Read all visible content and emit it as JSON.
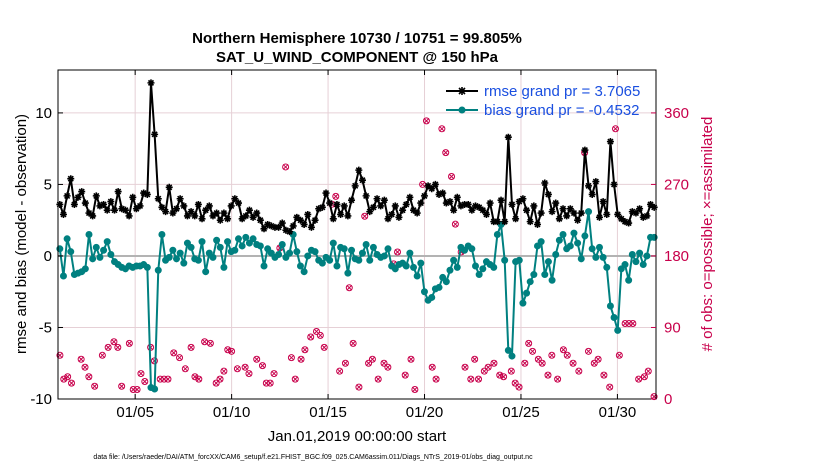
{
  "chart_data": {
    "type": "line",
    "title": "Northern Hemisphere 10730 / 10751 = 99.805%",
    "subtitle": "SAT_U_WIND_COMPONENT @ 150 hPa",
    "xlabel": "Jan.01,2019 00:00:00 start",
    "ylabel": "rmse and bias (model - observation)",
    "ylabel_right": "# of obs: o=possible; ×=assimilated",
    "footnote": "data file: /Users/raeder/DAI/ATM_forcXX/CAM6_setup/f.e21.FHIST_BGC.f09_025.CAM6assim.011/Diags_NTrS_2019-01/obs_diag_output.nc",
    "x_ticks": [
      "01/05",
      "01/10",
      "01/15",
      "01/20",
      "01/25",
      "01/30"
    ],
    "y_ticks": [
      "-10",
      "-5",
      "0",
      "5",
      "10"
    ],
    "y2_ticks": [
      "0",
      "90",
      "180",
      "270",
      "360"
    ],
    "xlim": [
      1.0,
      32.0
    ],
    "ylim": [
      -10,
      13
    ],
    "y2lim": [
      0,
      414
    ],
    "grid": true,
    "legend_position": "top-right",
    "colors": {
      "rmse": "#000000",
      "bias": "#008080",
      "obs": "#c8004b",
      "zero_line": "#b3b3b3"
    },
    "series": [
      {
        "name": "rmse grand pr = 3.7065",
        "values": [
          3.6,
          2.9,
          4.2,
          5.4,
          3.6,
          4.1,
          4.5,
          3.7,
          3.0,
          2.8,
          4.2,
          3.5,
          3.6,
          3.2,
          3.8,
          3.2,
          4.5,
          3.3,
          3.2,
          2.8,
          4.1,
          3.3,
          3.5,
          4.4,
          4.3,
          12.1,
          8.5,
          4.0,
          3.4,
          3.1,
          4.8,
          3.0,
          3.3,
          4.0,
          3.5,
          2.8,
          3.1,
          2.8,
          3.6,
          2.6,
          3.2,
          3.5,
          2.8,
          3.0,
          2.5,
          3.0,
          2.6,
          3.5,
          4.0,
          3.7,
          2.6,
          2.8,
          3.2,
          2.7,
          3.0,
          2.5,
          1.9,
          2.2,
          2.1,
          2.0,
          2.0,
          2.3,
          1.8,
          1.7,
          2.1,
          2.7,
          2.5,
          2.2,
          2.9,
          2.0,
          2.5,
          3.3,
          3.4,
          4.4,
          3.7,
          2.6,
          3.6,
          2.9,
          3.5,
          2.8,
          3.9,
          4.9,
          6.0,
          5.3,
          4.2,
          3.1,
          3.4,
          4.0,
          3.5,
          3.9,
          2.6,
          2.9,
          3.5,
          2.7,
          3.2,
          3.6,
          4.1,
          3.2,
          3.0,
          3.7,
          4.2,
          4.9,
          4.7,
          5.0,
          4.3,
          4.4,
          3.7,
          3.8,
          3.2,
          4.1,
          3.5,
          3.6,
          3.6,
          3.2,
          3.5,
          3.4,
          3.2,
          2.9,
          3.7,
          2.4,
          2.4,
          3.9,
          2.4,
          8.3,
          3.6,
          2.6,
          3.8,
          4.0,
          3.2,
          2.4,
          3.5,
          2.2,
          3.0,
          5.1,
          4.3,
          3.1,
          3.7,
          2.6,
          3.3,
          2.8,
          3.3,
          3.0,
          2.5,
          3.0,
          7.4,
          4.9,
          4.3,
          5.2,
          2.7,
          3.8,
          2.9,
          8.0,
          5.0,
          2.9,
          2.6,
          2.4,
          2.3,
          3.1,
          3.0,
          3.3,
          2.7,
          2.8,
          3.6,
          3.4
        ],
        "marker": "*"
      },
      {
        "name": "bias grand pr = -0.4532",
        "values": [
          0.5,
          -1.4,
          1.2,
          0.3,
          -1.3,
          -1.2,
          -1.1,
          -0.9,
          1.5,
          -0.2,
          0.6,
          -0.1,
          0.4,
          1.0,
          0.1,
          -0.4,
          -0.6,
          -0.8,
          -0.9,
          -0.7,
          -0.8,
          -0.7,
          -0.7,
          -0.6,
          -0.8,
          -9.2,
          -9.3,
          -1.0,
          1.5,
          -0.3,
          -0.1,
          0.4,
          -0.2,
          0.2,
          -0.5,
          0.9,
          0.6,
          -0.2,
          -0.3,
          1.0,
          -1.1,
          0.2,
          -0.1,
          1.1,
          0.6,
          -0.8,
          1.0,
          0.3,
          0.4,
          1.2,
          0.7,
          1.3,
          0.9,
          1.2,
          0.8,
          0.7,
          -0.7,
          0.5,
          0.2,
          -0.1,
          0.1,
          0.8,
          -0.1,
          0.2,
          1.5,
          0.3,
          -0.7,
          -1.1,
          0.0,
          0.4,
          0.3,
          -0.3,
          -0.5,
          -0.1,
          -0.3,
          0.9,
          -0.7,
          0.6,
          0.5,
          -1.2,
          0.4,
          -0.2,
          -0.3,
          0.2,
          0.8,
          -0.3,
          0.6,
          0.1,
          -0.1,
          0.0,
          0.5,
          -0.7,
          -0.9,
          -0.6,
          -0.5,
          -0.7,
          0.2,
          -0.8,
          -1.4,
          -0.5,
          -2.5,
          -3.1,
          -2.9,
          -2.3,
          -2.2,
          -1.5,
          -1.8,
          -1.0,
          -0.3,
          -0.8,
          0.6,
          0.4,
          0.7,
          0.5,
          -0.7,
          -1.3,
          -0.9,
          -0.4,
          -0.6,
          -0.8,
          1.5,
          2.2,
          -0.3,
          -6.6,
          -7.0,
          -0.4,
          -0.3,
          -3.3,
          -2.6,
          -1.8,
          -1.3,
          0.7,
          1.0,
          -1.3,
          -0.4,
          -1.7,
          0.1,
          1.1,
          1.5,
          0.5,
          0.7,
          1.6,
          0.9,
          -0.2,
          1.4,
          3.1,
          0.5,
          -0.1,
          0.6,
          -0.1,
          -0.8,
          -3.5,
          -4.3,
          -5.2,
          -0.9,
          -0.6,
          -1.7,
          0.1,
          -0.4,
          0.2,
          -0.6,
          0.0,
          1.3,
          1.3
        ],
        "marker": "o"
      }
    ],
    "obs_count": [
      {
        "day": 1.1,
        "count": 55
      },
      {
        "day": 1.3,
        "count": 25
      },
      {
        "day": 1.5,
        "count": 28
      },
      {
        "day": 1.7,
        "count": 20
      },
      {
        "day": 2.2,
        "count": 50
      },
      {
        "day": 2.4,
        "count": 40
      },
      {
        "day": 2.6,
        "count": 28
      },
      {
        "day": 2.9,
        "count": 16
      },
      {
        "day": 3.3,
        "count": 55
      },
      {
        "day": 3.6,
        "count": 65
      },
      {
        "day": 3.9,
        "count": 72
      },
      {
        "day": 4.1,
        "count": 65
      },
      {
        "day": 4.3,
        "count": 16
      },
      {
        "day": 4.7,
        "count": 70
      },
      {
        "day": 4.9,
        "count": 12
      },
      {
        "day": 5.1,
        "count": 12
      },
      {
        "day": 5.3,
        "count": 32
      },
      {
        "day": 5.5,
        "count": 22
      },
      {
        "day": 5.8,
        "count": 65
      },
      {
        "day": 6.0,
        "count": 48
      },
      {
        "day": 6.3,
        "count": 25
      },
      {
        "day": 6.5,
        "count": 25
      },
      {
        "day": 6.7,
        "count": 25
      },
      {
        "day": 7.0,
        "count": 58
      },
      {
        "day": 7.3,
        "count": 52
      },
      {
        "day": 7.6,
        "count": 38
      },
      {
        "day": 7.9,
        "count": 65
      },
      {
        "day": 8.1,
        "count": 28
      },
      {
        "day": 8.3,
        "count": 25
      },
      {
        "day": 8.6,
        "count": 72
      },
      {
        "day": 8.9,
        "count": 70
      },
      {
        "day": 9.2,
        "count": 20
      },
      {
        "day": 9.4,
        "count": 25
      },
      {
        "day": 9.6,
        "count": 35
      },
      {
        "day": 9.8,
        "count": 62
      },
      {
        "day": 10.0,
        "count": 60
      },
      {
        "day": 10.3,
        "count": 38
      },
      {
        "day": 10.7,
        "count": 40
      },
      {
        "day": 10.9,
        "count": 32
      },
      {
        "day": 11.3,
        "count": 50
      },
      {
        "day": 11.6,
        "count": 42
      },
      {
        "day": 11.8,
        "count": 20
      },
      {
        "day": 12.0,
        "count": 20
      },
      {
        "day": 12.2,
        "count": 32
      },
      {
        "day": 12.5,
        "count": 190
      },
      {
        "day": 12.8,
        "count": 292
      },
      {
        "day": 13.1,
        "count": 52
      },
      {
        "day": 13.3,
        "count": 25
      },
      {
        "day": 13.6,
        "count": 50
      },
      {
        "day": 13.8,
        "count": 62
      },
      {
        "day": 14.1,
        "count": 78
      },
      {
        "day": 14.4,
        "count": 85
      },
      {
        "day": 14.6,
        "count": 80
      },
      {
        "day": 14.8,
        "count": 65
      },
      {
        "day": 15.2,
        "count": 245
      },
      {
        "day": 15.4,
        "count": 255
      },
      {
        "day": 15.6,
        "count": 35
      },
      {
        "day": 15.9,
        "count": 45
      },
      {
        "day": 16.1,
        "count": 140
      },
      {
        "day": 16.3,
        "count": 70
      },
      {
        "day": 16.6,
        "count": 15
      },
      {
        "day": 16.9,
        "count": 230
      },
      {
        "day": 17.1,
        "count": 45
      },
      {
        "day": 17.3,
        "count": 50
      },
      {
        "day": 17.6,
        "count": 25
      },
      {
        "day": 17.9,
        "count": 45
      },
      {
        "day": 18.1,
        "count": 40
      },
      {
        "day": 18.4,
        "count": 170
      },
      {
        "day": 18.6,
        "count": 185
      },
      {
        "day": 19.0,
        "count": 30
      },
      {
        "day": 19.3,
        "count": 50
      },
      {
        "day": 19.5,
        "count": 12
      },
      {
        "day": 19.9,
        "count": 270
      },
      {
        "day": 20.1,
        "count": 350
      },
      {
        "day": 20.4,
        "count": 40
      },
      {
        "day": 20.6,
        "count": 25
      },
      {
        "day": 20.9,
        "count": 340
      },
      {
        "day": 21.1,
        "count": 310
      },
      {
        "day": 21.4,
        "count": 280
      },
      {
        "day": 21.6,
        "count": 220
      },
      {
        "day": 21.9,
        "count": 185
      },
      {
        "day": 22.1,
        "count": 40
      },
      {
        "day": 22.4,
        "count": 25
      },
      {
        "day": 22.6,
        "count": 50
      },
      {
        "day": 22.8,
        "count": 25
      },
      {
        "day": 23.1,
        "count": 35
      },
      {
        "day": 23.3,
        "count": 40
      },
      {
        "day": 23.6,
        "count": 45
      },
      {
        "day": 23.9,
        "count": 30
      },
      {
        "day": 24.1,
        "count": 28
      },
      {
        "day": 24.5,
        "count": 35
      },
      {
        "day": 24.7,
        "count": 20
      },
      {
        "day": 24.9,
        "count": 15
      },
      {
        "day": 25.2,
        "count": 45
      },
      {
        "day": 25.4,
        "count": 70
      },
      {
        "day": 25.6,
        "count": 60
      },
      {
        "day": 25.9,
        "count": 50
      },
      {
        "day": 26.1,
        "count": 45
      },
      {
        "day": 26.4,
        "count": 30
      },
      {
        "day": 26.6,
        "count": 55
      },
      {
        "day": 26.9,
        "count": 25
      },
      {
        "day": 27.2,
        "count": 62
      },
      {
        "day": 27.4,
        "count": 55
      },
      {
        "day": 27.7,
        "count": 45
      },
      {
        "day": 28.0,
        "count": 35
      },
      {
        "day": 28.3,
        "count": 310
      },
      {
        "day": 28.5,
        "count": 60
      },
      {
        "day": 28.8,
        "count": 45
      },
      {
        "day": 29.0,
        "count": 50
      },
      {
        "day": 29.3,
        "count": 30
      },
      {
        "day": 29.6,
        "count": 15
      },
      {
        "day": 29.9,
        "count": 340
      },
      {
        "day": 30.1,
        "count": 55
      },
      {
        "day": 30.4,
        "count": 95
      },
      {
        "day": 30.6,
        "count": 95
      },
      {
        "day": 30.8,
        "count": 95
      },
      {
        "day": 31.1,
        "count": 25
      },
      {
        "day": 31.4,
        "count": 28
      },
      {
        "day": 31.6,
        "count": 35
      },
      {
        "day": 31.9,
        "count": 3
      }
    ]
  }
}
